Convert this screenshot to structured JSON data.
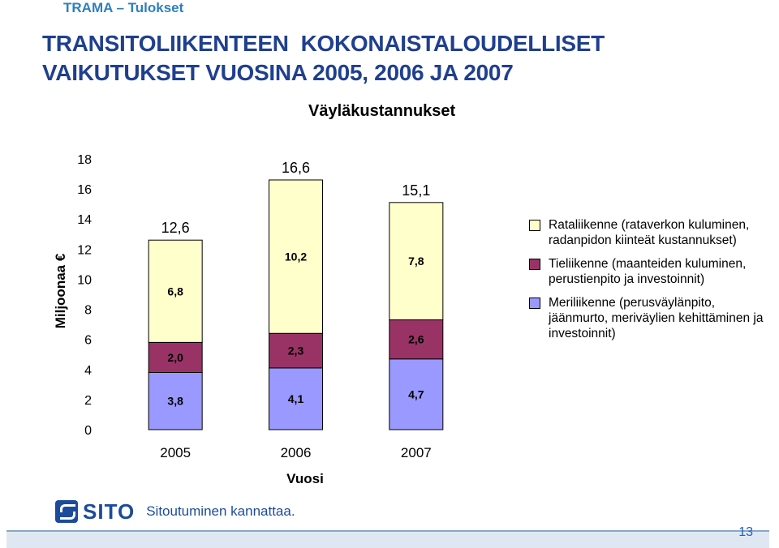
{
  "header": {
    "tag": "TRAMA – Tulokset"
  },
  "slide": {
    "title_line1": "TRANSITOLIIKENTEEN  KOKONAISTALOUDELLISET",
    "title_line2": "VAIKUTUKSET VUOSINA 2005, 2006 JA 2007",
    "page_number": "13"
  },
  "footer": {
    "logo_word": "SITO",
    "slogan": "Sitoutuminen kannattaa."
  },
  "chart_data": {
    "type": "bar",
    "stacked": true,
    "title": "Väyläkustannukset",
    "xlabel": "Vuosi",
    "ylabel": "Miljoonaa €",
    "ylim": [
      0,
      18
    ],
    "yticks": [
      0,
      2,
      4,
      6,
      8,
      10,
      12,
      14,
      16,
      18
    ],
    "categories": [
      "2005",
      "2006",
      "2007"
    ],
    "totals": [
      "12,6",
      "16,6",
      "15,1"
    ],
    "total_values": [
      12.6,
      16.6,
      15.1
    ],
    "series": [
      {
        "name": "Meriliikenne (perusväylänpito, jäänmurto, meriväylien kehittäminen ja investoinnit)",
        "values": [
          3.8,
          4.1,
          4.7
        ],
        "labels": [
          "3,8",
          "4,1",
          "4,7"
        ],
        "color": "#9999ff"
      },
      {
        "name": "Tieliikenne (maanteiden kuluminen, perustienpito ja investoinnit)",
        "values": [
          2.0,
          2.3,
          2.6
        ],
        "labels": [
          "2,0",
          "2,3",
          "2,6"
        ],
        "color": "#993366"
      },
      {
        "name": "Rataliikenne (rataverkon kuluminen, radanpidon kiinteät kustannukset)",
        "values": [
          6.8,
          10.2,
          7.8
        ],
        "labels": [
          "6,8",
          "10,2",
          "7,8"
        ],
        "color": "#ffffcc"
      }
    ],
    "legend_order": [
      2,
      1,
      0
    ],
    "legend_position": "right",
    "grid": false
  }
}
